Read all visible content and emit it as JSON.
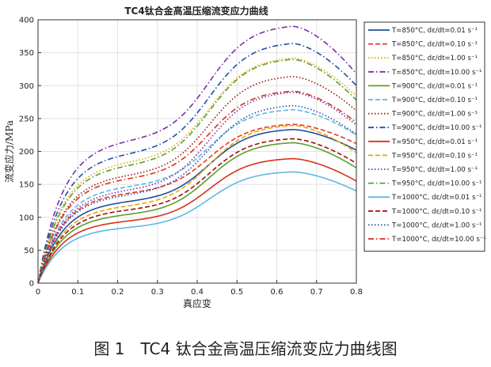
{
  "chart_data": {
    "type": "line",
    "title": "TC4钛合金高温压缩流变应力曲线",
    "xlabel": "真应变",
    "ylabel": "流变应力/MPa",
    "xlim": [
      0,
      0.8
    ],
    "ylim": [
      0,
      400
    ],
    "xticks": [
      "0",
      "0.1",
      "0.2",
      "0.3",
      "0.4",
      "0.5",
      "0.6",
      "0.7",
      "0.8"
    ],
    "yticks": [
      "0",
      "50",
      "100",
      "150",
      "200",
      "250",
      "300",
      "350",
      "400"
    ],
    "grid": true,
    "legend_position": "right",
    "series": [
      {
        "name": "T=850°C, dε/dt=0.01 s⁻¹",
        "color": "#1f4fa0",
        "dash": "solid",
        "plateau": 125,
        "peak": 232,
        "end": 202
      },
      {
        "name": "T=850°C, dε/dt=0.10 s⁻¹",
        "color": "#e8372c",
        "dash": "dashed",
        "plateau": 138,
        "peak": 240,
        "end": 212
      },
      {
        "name": "T=850°C, dε/dt=1.00 s⁻¹",
        "color": "#e8a800",
        "dash": "dotted",
        "plateau": 185,
        "peak": 340,
        "end": 284
      },
      {
        "name": "T=850°C, dε/dt=10.00 s⁻¹",
        "color": "#7b2fa8",
        "dash": "dashdot",
        "plateau": 218,
        "peak": 388,
        "end": 318
      },
      {
        "name": "T=900°C, dε/dt=0.01 s⁻¹",
        "color": "#5aa02c",
        "dash": "solid",
        "plateau": 105,
        "peak": 212,
        "end": 175
      },
      {
        "name": "T=900°C, dε/dt=0.10 s⁻¹",
        "color": "#5fb8e0",
        "dash": "dashed",
        "plateau": 148,
        "peak": 262,
        "end": 225
      },
      {
        "name": "T=900°C, dε/dt=1.00 s⁻¹",
        "color": "#a01010",
        "dash": "dotted",
        "plateau": 165,
        "peak": 312,
        "end": 262
      },
      {
        "name": "T=900°C, dε/dt=10.00 s⁻¹",
        "color": "#2050a8",
        "dash": "dashdot",
        "plateau": 198,
        "peak": 362,
        "end": 300
      },
      {
        "name": "T=950°C, dε/dt=0.01 s⁻¹",
        "color": "#d8301c",
        "dash": "solid",
        "plateau": 95,
        "peak": 188,
        "end": 155
      },
      {
        "name": "T=950°C, dε/dt=0.10 s⁻¹",
        "color": "#e8a800",
        "dash": "dashed",
        "plateau": 118,
        "peak": 238,
        "end": 198
      },
      {
        "name": "T=950°C, dε/dt=1.00 s⁻¹",
        "color": "#7b2fa8",
        "dash": "dotted",
        "plateau": 142,
        "peak": 288,
        "end": 240
      },
      {
        "name": "T=950°C, dε/dt=10.00 s⁻¹",
        "color": "#5aa02c",
        "dash": "dashdot",
        "plateau": 180,
        "peak": 338,
        "end": 278
      },
      {
        "name": "T=1000°C, dε/dt=0.01 s⁻¹",
        "color": "#5fb8e0",
        "dash": "solid",
        "plateau": 85,
        "peak": 168,
        "end": 140
      },
      {
        "name": "T=1000°C, dε/dt=0.10 s⁻¹",
        "color": "#a01010",
        "dash": "dashed",
        "plateau": 112,
        "peak": 218,
        "end": 182
      },
      {
        "name": "T=1000°C, dε/dt=1.00 s⁻¹",
        "color": "#2050a8",
        "dash": "dotted",
        "plateau": 135,
        "peak": 268,
        "end": 226
      },
      {
        "name": "T=1000°C, dε/dt=10.00 s⁻¹",
        "color": "#d8301c",
        "dash": "dashdot",
        "plateau": 160,
        "peak": 290,
        "end": 244
      }
    ]
  },
  "caption": "图 1　TC4 钛合金高温压缩流变应力曲线图"
}
